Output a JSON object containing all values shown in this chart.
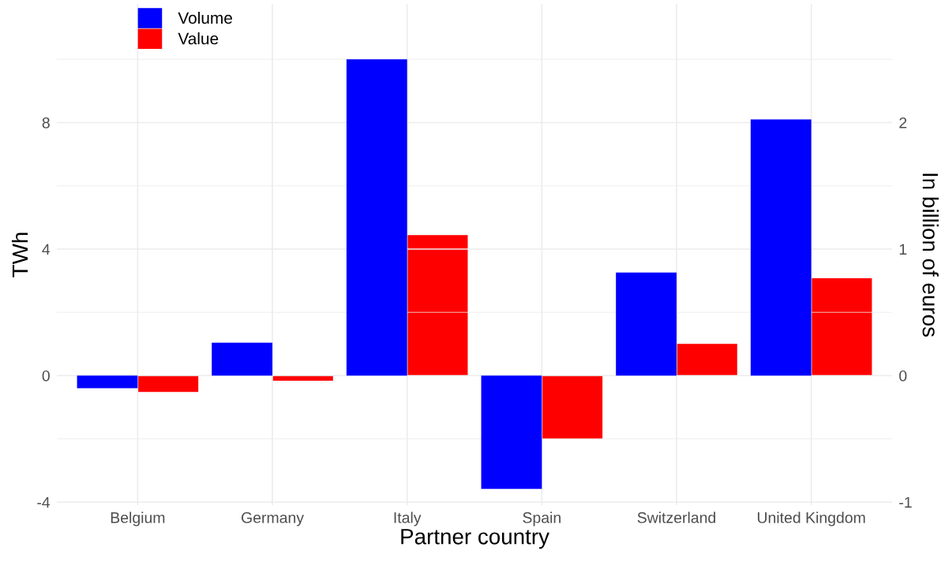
{
  "chart_data": {
    "type": "bar",
    "xlabel": "Partner country",
    "ylabel": "TWh",
    "y2label": "In billion of euros",
    "categories": [
      "Belgium",
      "Germany",
      "Italy",
      "Spain",
      "Switzerland",
      "United Kingdom"
    ],
    "series": [
      {
        "name": "Volume",
        "color": "#0000ff",
        "values": [
          -0.4,
          1.04,
          10.0,
          -3.58,
          3.26,
          8.1
        ]
      },
      {
        "name": "Value",
        "color": "#ff0000",
        "axis": "y2",
        "values": [
          -0.13,
          -0.04,
          1.11,
          -0.5,
          0.25,
          0.77
        ]
      }
    ],
    "ylim": [
      -4.1,
      11.75
    ],
    "yticks": [
      -4,
      0,
      4,
      8
    ],
    "y2lim": [
      -1.025,
      2.9375
    ],
    "y2ticks": [
      -1,
      0,
      1,
      2
    ],
    "grid": true,
    "legend": "top left"
  }
}
